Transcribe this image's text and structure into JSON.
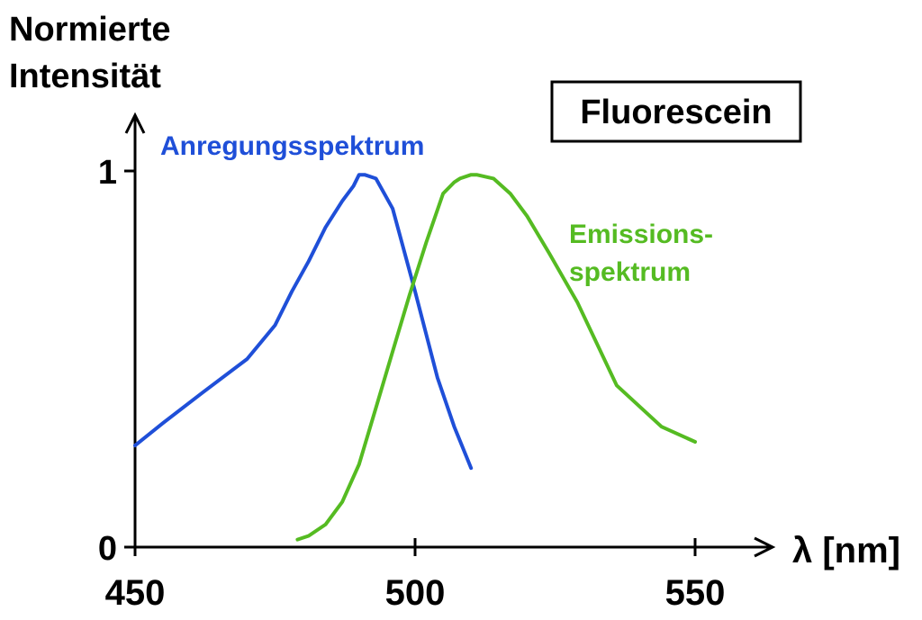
{
  "chart_data": {
    "type": "line",
    "title": "Fluorescein",
    "ylabel_line1": "Normierte",
    "ylabel_line2": "Intensität",
    "xlabel": "λ [nm]",
    "xlim": [
      450,
      555
    ],
    "ylim": [
      0,
      1
    ],
    "xticks": [
      450,
      500,
      550
    ],
    "yticks": [
      0,
      1
    ],
    "grid": false,
    "legend": "none",
    "series": [
      {
        "name": "Anregungsspektrum",
        "color": "#1f4fd8",
        "x": [
          450,
          455,
          462,
          470,
          475,
          478,
          481,
          484,
          487,
          489,
          490,
          491,
          493,
          496,
          500,
          504,
          507,
          510
        ],
        "y": [
          0.27,
          0.33,
          0.41,
          0.5,
          0.59,
          0.68,
          0.76,
          0.85,
          0.92,
          0.96,
          0.99,
          0.99,
          0.98,
          0.9,
          0.68,
          0.45,
          0.32,
          0.21
        ]
      },
      {
        "name": "Emissions-spektrum",
        "name_line1": "Emissions-",
        "name_line2": "spektrum",
        "color": "#55bb22",
        "x": [
          479,
          481,
          484,
          487,
          490,
          493,
          496,
          499,
          502,
          505,
          507,
          508,
          510,
          511,
          514,
          517,
          520,
          524,
          529,
          536,
          544,
          550
        ],
        "y": [
          0.02,
          0.03,
          0.06,
          0.12,
          0.22,
          0.37,
          0.52,
          0.67,
          0.81,
          0.94,
          0.97,
          0.98,
          0.99,
          0.99,
          0.98,
          0.94,
          0.88,
          0.78,
          0.65,
          0.43,
          0.32,
          0.28
        ]
      }
    ]
  }
}
